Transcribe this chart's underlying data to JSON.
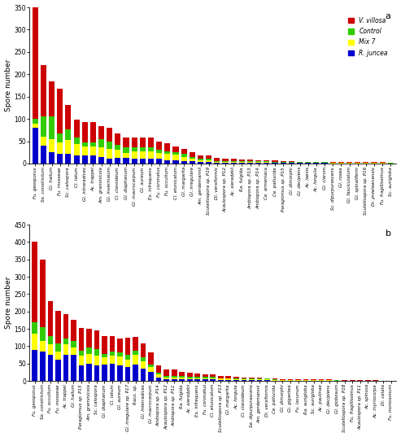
{
  "panel_a": {
    "title": "a",
    "ylim": [
      0,
      350
    ],
    "yticks": [
      0,
      50,
      100,
      150,
      200,
      250,
      300,
      350
    ],
    "ylabel": "Spore number",
    "species": [
      "Fu. geosporus",
      "Se. constrictum",
      "Gl. hailum",
      "Fu. mosseae",
      "Sc. calospora",
      "Cl. latum",
      "Gl. intraradices",
      "Ac. trappei",
      "Am. graminicola",
      "Gl. invermaium",
      "Cl. claroideum",
      "Gl. diaphanum",
      "Gl. macrocarpum",
      "Gl. aureum",
      "Ex. infrequens",
      "Fu. coronatus",
      "Fu. occultum",
      "Cl. etunicatum",
      "Gl. margarita",
      "Gl. irregulare",
      "Am. gerdemannii",
      "Scutellospora sp. P19",
      "Di. versiformis",
      "Acaulospora sp. P12",
      "Ac. sieradzkii",
      "Ra. fulgida",
      "Ambispora sp. P13",
      "Ambispora sp. P14",
      "Ce. armeniaca",
      "Ce. pallucida",
      "Paraglomus sp. P15",
      "Gl. dimorphi",
      "Gi. decipiens",
      "Ac. laevis",
      "Ac. longula",
      "Gl. clarum",
      "Sc. dipurpurascens",
      "Gl. rosea",
      "Gl. fasciculatum",
      "Gl. spinaliferm",
      "Scutellospora sp. P16",
      "Di. przelawcensis",
      "Fu. fragillissimus",
      "Sc. aurigloba"
    ],
    "red": [
      250,
      115,
      80,
      100,
      55,
      40,
      45,
      45,
      30,
      30,
      25,
      22,
      22,
      22,
      22,
      20,
      18,
      12,
      12,
      10,
      8,
      7,
      7,
      5,
      5,
      3,
      3,
      3,
      3,
      3,
      2,
      2,
      1,
      1,
      1,
      1,
      1,
      1,
      1,
      1,
      1,
      1,
      1,
      1
    ],
    "green": [
      10,
      45,
      50,
      20,
      25,
      15,
      10,
      10,
      18,
      18,
      12,
      12,
      8,
      8,
      8,
      6,
      6,
      6,
      6,
      4,
      4,
      4,
      2,
      2,
      2,
      2,
      2,
      2,
      2,
      2,
      1,
      1,
      1,
      1,
      1,
      1,
      1,
      1,
      1,
      1,
      1,
      1,
      1,
      1
    ],
    "yellow": [
      10,
      20,
      30,
      25,
      30,
      25,
      20,
      20,
      22,
      22,
      18,
      12,
      18,
      18,
      18,
      14,
      14,
      12,
      10,
      6,
      4,
      4,
      2,
      2,
      2,
      2,
      2,
      1,
      1,
      1,
      1,
      1,
      1,
      1,
      1,
      1,
      1,
      1,
      1,
      1,
      1,
      1,
      1,
      0
    ],
    "blue": [
      80,
      40,
      25,
      22,
      22,
      18,
      18,
      18,
      14,
      10,
      12,
      12,
      10,
      10,
      10,
      10,
      8,
      8,
      5,
      5,
      3,
      3,
      2,
      2,
      2,
      2,
      2,
      2,
      2,
      1,
      1,
      1,
      1,
      1,
      1,
      1,
      0,
      0,
      0,
      0,
      0,
      0,
      0,
      0
    ]
  },
  "panel_b": {
    "title": "b",
    "ylim": [
      0,
      450
    ],
    "yticks": [
      0,
      50,
      100,
      150,
      200,
      250,
      300,
      350,
      400,
      450
    ],
    "ylabel": "Spore number",
    "species": [
      "Fu. geosporus",
      "Se. constrictum",
      "Fu. occultum",
      "Fu. mosseae",
      "Ac. trappei",
      "Gl. hailum",
      "Paraglomus sp. P15",
      "Am. graminicola",
      "Sc. calospora",
      "Gl. diaphanum",
      "Cl. latum",
      "Gl. aureum",
      "Gl. irregulare sp. P17",
      "Raco. sp.",
      "Gl. interradices",
      "Gl. macrocarpum",
      "Ambispora sp. P14",
      "Acaulospora sp. P12",
      "Ambispora sp. P11",
      "Ra. fulgida",
      "Ac. sieradzkii",
      "Ex. infrequens",
      "Fu. coronatus",
      "Cl. etunicatum",
      "Scutellospora sp. P13",
      "Gl. margarita",
      "Ac. longula",
      "Cl. claroideum",
      "Se. dipurpurascens",
      "Am. gerdemannii",
      "Di. versiformis",
      "Ce. pallucida",
      "Gl. dimorphi",
      "Gi. gigantea",
      "Fu. lacunum",
      "Ra. aurigloba",
      "Sc. aurigloba",
      "Ac. paulinae",
      "Gi. decipiens",
      "Gl. globosum",
      "Scutellospora sp. P18",
      "Fu. fragillissimus",
      "Acaulospora sp. P11",
      "Ac. spinosa",
      "Ac. myriocorpa",
      "Di. celata",
      "Fu. monosonum"
    ],
    "red": [
      230,
      195,
      100,
      95,
      70,
      60,
      65,
      55,
      55,
      50,
      45,
      40,
      50,
      40,
      40,
      35,
      20,
      18,
      18,
      12,
      12,
      10,
      8,
      8,
      6,
      5,
      5,
      4,
      3,
      3,
      2,
      2,
      2,
      2,
      2,
      2,
      2,
      1,
      1,
      1,
      1,
      1,
      1,
      1,
      1,
      1,
      1
    ],
    "green": [
      35,
      40,
      25,
      22,
      18,
      18,
      14,
      18,
      18,
      10,
      12,
      12,
      12,
      10,
      10,
      8,
      6,
      4,
      4,
      4,
      3,
      3,
      3,
      3,
      2,
      2,
      2,
      2,
      2,
      2,
      2,
      2,
      1,
      1,
      1,
      1,
      1,
      1,
      1,
      1,
      1,
      1,
      1,
      1,
      1,
      0,
      0
    ],
    "yellow": [
      45,
      30,
      30,
      25,
      30,
      22,
      28,
      28,
      28,
      20,
      22,
      25,
      22,
      28,
      22,
      15,
      8,
      5,
      5,
      5,
      4,
      4,
      4,
      4,
      3,
      3,
      2,
      2,
      2,
      2,
      2,
      1,
      1,
      1,
      1,
      1,
      1,
      1,
      1,
      1,
      0,
      0,
      0,
      0,
      0,
      0,
      0
    ],
    "blue": [
      90,
      85,
      75,
      60,
      75,
      75,
      45,
      50,
      45,
      48,
      50,
      45,
      40,
      48,
      35,
      25,
      10,
      5,
      5,
      5,
      4,
      4,
      4,
      4,
      3,
      3,
      2,
      2,
      2,
      2,
      2,
      1,
      1,
      1,
      1,
      1,
      1,
      1,
      1,
      0,
      0,
      0,
      0,
      0,
      0,
      0,
      0
    ]
  },
  "colors": {
    "red": "#cc0000",
    "green": "#33cc00",
    "yellow": "#ffff00",
    "blue": "#0000cc"
  },
  "legend_labels": [
    "V. villosa",
    "Control",
    "Mix 7",
    "R. juncea"
  ],
  "bar_width": 0.7
}
